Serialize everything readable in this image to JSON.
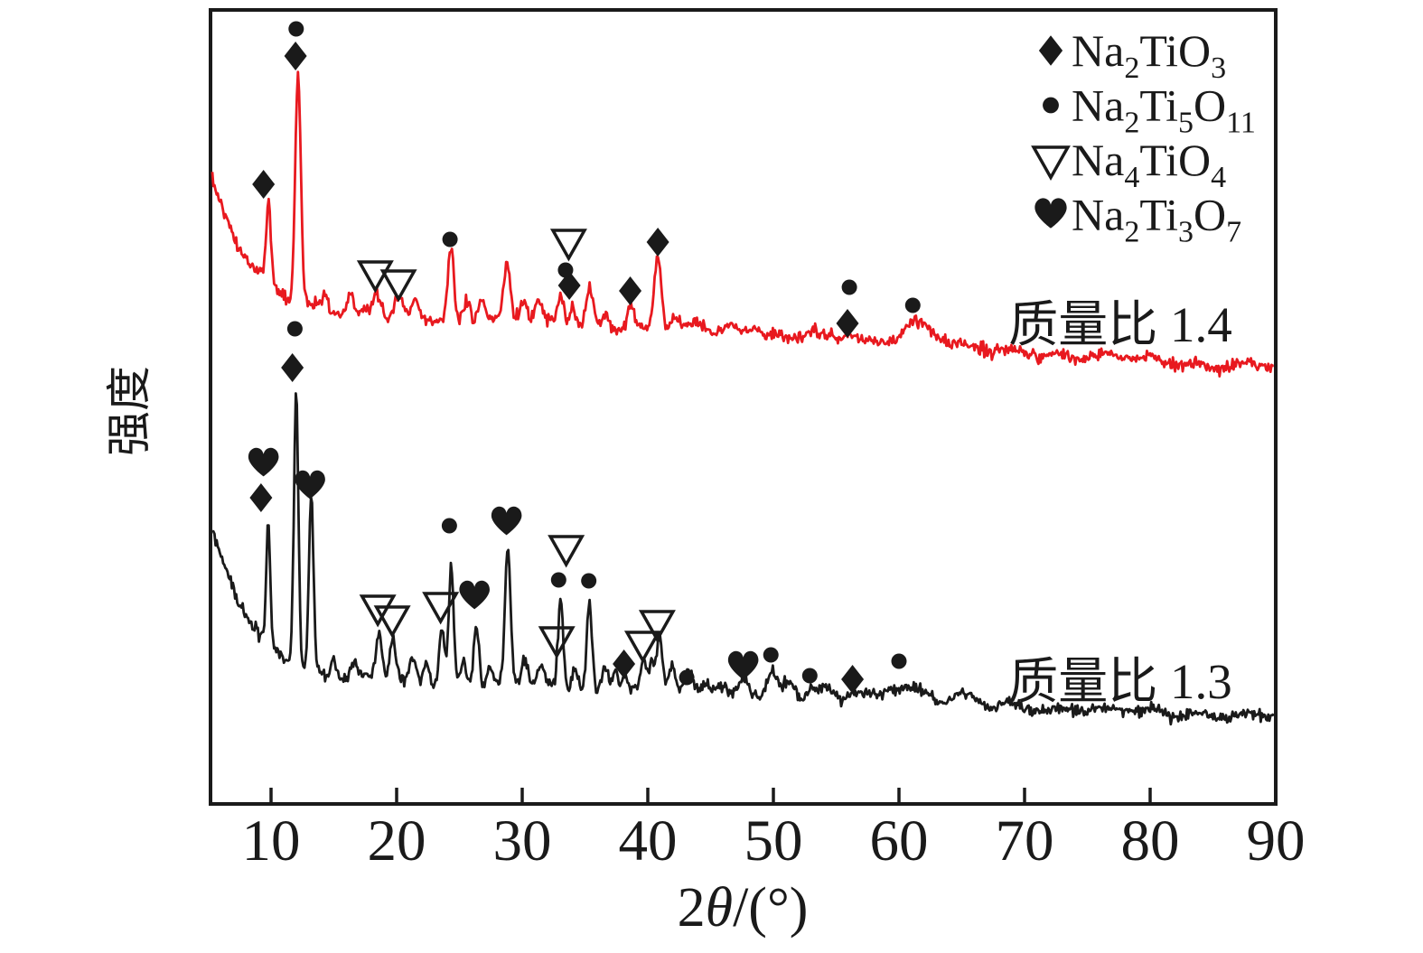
{
  "figure": {
    "background": "#ffffff",
    "frame_color": "#1a1a1a"
  },
  "chart_data": {
    "type": "line",
    "title": "",
    "xlabel": "2θ/(°)",
    "ylabel": "强度",
    "xlim": [
      5,
      90
    ],
    "x_ticks": [
      10,
      20,
      30,
      40,
      50,
      60,
      70,
      80,
      90
    ],
    "grid": false,
    "y_axis_ticks": "none (intensity, arbitrary units)",
    "legend_position": "top-right",
    "legend": [
      {
        "symbol": "diamond-filled-icon",
        "formula": "Na2TiO3"
      },
      {
        "symbol": "dot-filled-icon",
        "formula": "Na2Ti5O11"
      },
      {
        "symbol": "triangle-down-open-icon",
        "formula": "Na4TiO4"
      },
      {
        "symbol": "heart-filled-icon",
        "formula": "Na2Ti3O7"
      }
    ],
    "series": [
      {
        "name": "质量比 1.4",
        "color": "#e8191f",
        "noise": 8,
        "seed": 7,
        "baseline": {
          "flat": 352,
          "amp": 163,
          "decay": 3.4,
          "drift": 0.85,
          "drift_from": 25
        },
        "peaks": [
          [
            9.8,
            88,
            0.18
          ],
          [
            12.15,
            258,
            0.22
          ],
          [
            14.3,
            18,
            0.25
          ],
          [
            16.3,
            18,
            0.25
          ],
          [
            18.4,
            22,
            0.28
          ],
          [
            20.2,
            22,
            0.28
          ],
          [
            21.5,
            18,
            0.25
          ],
          [
            24.3,
            80,
            0.22
          ],
          [
            25.6,
            22,
            0.25
          ],
          [
            26.8,
            25,
            0.28
          ],
          [
            28.8,
            62,
            0.25
          ],
          [
            30.1,
            25,
            0.28
          ],
          [
            31.3,
            20,
            0.28
          ],
          [
            33.1,
            31,
            0.25
          ],
          [
            34.0,
            24,
            0.22
          ],
          [
            35.4,
            39,
            0.28
          ],
          [
            36.7,
            18,
            0.28
          ],
          [
            38.6,
            24,
            0.28
          ],
          [
            40.8,
            82,
            0.28
          ],
          [
            42.1,
            16,
            0.28
          ],
          [
            44.0,
            10,
            0.45
          ],
          [
            46.5,
            8,
            0.7
          ],
          [
            48.5,
            12,
            0.7
          ],
          [
            53.0,
            7,
            0.6
          ],
          [
            56.1,
            8,
            0.5
          ],
          [
            61.2,
            27,
            1.1
          ],
          [
            63.0,
            9,
            0.8
          ]
        ],
        "annotations": {
          "diamond": [
            [
              9.4,
              204
            ],
            [
              11.95,
              62
            ],
            [
              33.75,
              316
            ],
            [
              38.6,
              322
            ],
            [
              40.8,
              268
            ],
            [
              55.9,
              358
            ]
          ],
          "dot": [
            [
              12.0,
              32
            ],
            [
              24.25,
              265
            ],
            [
              33.45,
              299
            ],
            [
              56.05,
              318
            ],
            [
              61.1,
              338
            ]
          ],
          "triangle": [
            [
              18.3,
              303
            ],
            [
              20.15,
              313
            ],
            [
              33.7,
              268
            ]
          ],
          "heart": []
        }
      },
      {
        "name": "质量比 1.3",
        "color": "#1a1a1a",
        "noise": 7.5,
        "seed": 13,
        "baseline": {
          "flat": 758,
          "amp": 185,
          "decay": 3.4,
          "drift": 0.55,
          "drift_from": 25
        },
        "peaks": [
          [
            9.78,
            135,
            0.15
          ],
          [
            12.0,
            305,
            0.18
          ],
          [
            13.2,
            195,
            0.18
          ],
          [
            15.0,
            22,
            0.2
          ],
          [
            16.6,
            20,
            0.25
          ],
          [
            18.6,
            52,
            0.25
          ],
          [
            19.7,
            48,
            0.25
          ],
          [
            21.3,
            25,
            0.25
          ],
          [
            22.4,
            25,
            0.25
          ],
          [
            23.6,
            65,
            0.22
          ],
          [
            24.35,
            130,
            0.2
          ],
          [
            25.3,
            28,
            0.2
          ],
          [
            26.35,
            70,
            0.22
          ],
          [
            27.4,
            22,
            0.25
          ],
          [
            28.85,
            150,
            0.22
          ],
          [
            30.2,
            30,
            0.28
          ],
          [
            31.5,
            22,
            0.28
          ],
          [
            33.05,
            95,
            0.2
          ],
          [
            34.2,
            28,
            0.22
          ],
          [
            35.35,
            98,
            0.2
          ],
          [
            36.6,
            28,
            0.25
          ],
          [
            37.4,
            25,
            0.25
          ],
          [
            38.2,
            18,
            0.25
          ],
          [
            39.7,
            32,
            0.25
          ],
          [
            40.3,
            28,
            0.2
          ],
          [
            40.95,
            62,
            0.25
          ],
          [
            41.9,
            30,
            0.25
          ],
          [
            43.2,
            22,
            0.28
          ],
          [
            44.6,
            12,
            0.4
          ],
          [
            45.8,
            12,
            0.4
          ],
          [
            47.7,
            18,
            0.5
          ],
          [
            49.9,
            30,
            0.4
          ],
          [
            51.2,
            15,
            0.4
          ],
          [
            53.0,
            12,
            0.35
          ],
          [
            54.2,
            10,
            0.4
          ],
          [
            56.4,
            10,
            0.4
          ],
          [
            57.5,
            8,
            0.5
          ],
          [
            60.1,
            22,
            1.0
          ],
          [
            62.3,
            10,
            0.8
          ],
          [
            65.0,
            8,
            0.8
          ]
        ],
        "annotations": {
          "diamond": [
            [
              9.2,
              551
            ],
            [
              11.7,
              407
            ],
            [
              38.1,
              735
            ],
            [
              56.3,
              752
            ]
          ],
          "dot": [
            [
              11.9,
              364
            ],
            [
              24.2,
              582
            ],
            [
              32.9,
              642
            ],
            [
              35.3,
              643
            ],
            [
              43.1,
              750
            ],
            [
              49.8,
              725
            ],
            [
              52.9,
              748
            ],
            [
              60.0,
              732
            ]
          ],
          "triangle": [
            [
              18.5,
              673
            ],
            [
              19.65,
              685
            ],
            [
              23.5,
              670
            ],
            [
              33.5,
              607
            ],
            [
              32.75,
              708
            ],
            [
              39.6,
              713
            ],
            [
              40.75,
              690
            ]
          ],
          "heart": [
            [
              9.4,
              513
            ],
            [
              13.1,
              538
            ],
            [
              26.2,
              660
            ],
            [
              28.75,
              578
            ],
            [
              47.6,
              738
            ]
          ]
        }
      }
    ]
  }
}
